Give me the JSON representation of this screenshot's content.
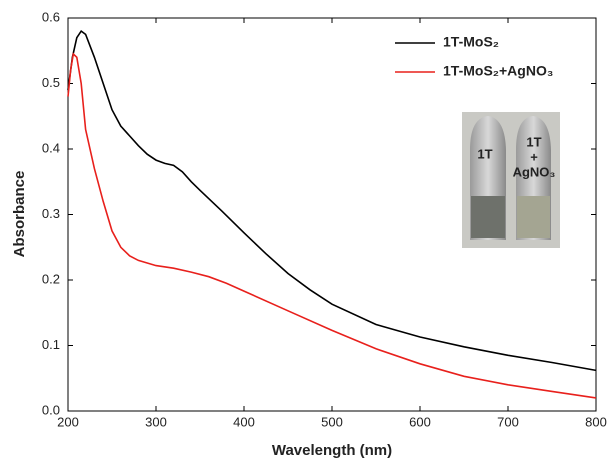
{
  "chart_data": {
    "type": "line",
    "x_label": "Wavelength (nm)",
    "y_label": "Absorbance",
    "xlim": [
      200,
      800
    ],
    "ylim": [
      0,
      0.6
    ],
    "xticks": [
      200,
      300,
      400,
      500,
      600,
      700,
      800
    ],
    "yticks": [
      {
        "value": 0,
        "label": "0.0"
      },
      0.1,
      0.2,
      0.3,
      0.4,
      0.5,
      0.6
    ],
    "legend": "upper right",
    "annotations": [
      "1T",
      "1T",
      "+",
      "AgNO₃"
    ],
    "series": [
      {
        "name": "1T-MoS₂",
        "color": "#000000",
        "x": [
          200,
          205,
          210,
          215,
          220,
          230,
          240,
          250,
          260,
          270,
          280,
          290,
          300,
          310,
          320,
          330,
          340,
          350,
          375,
          400,
          425,
          450,
          475,
          500,
          550,
          600,
          650,
          700,
          750,
          800
        ],
        "values": [
          0.49,
          0.54,
          0.57,
          0.58,
          0.575,
          0.54,
          0.5,
          0.46,
          0.435,
          0.42,
          0.405,
          0.392,
          0.383,
          0.378,
          0.375,
          0.365,
          0.35,
          0.337,
          0.305,
          0.272,
          0.24,
          0.21,
          0.185,
          0.163,
          0.132,
          0.113,
          0.098,
          0.085,
          0.074,
          0.062
        ]
      },
      {
        "name": "1T-MoS₂+AgNO₃",
        "color": "#e8201c",
        "x": [
          200,
          203,
          206,
          210,
          215,
          220,
          230,
          240,
          250,
          260,
          270,
          280,
          300,
          320,
          340,
          360,
          380,
          400,
          450,
          500,
          550,
          600,
          650,
          700,
          750,
          800
        ],
        "values": [
          0.48,
          0.52,
          0.545,
          0.54,
          0.5,
          0.43,
          0.37,
          0.32,
          0.275,
          0.25,
          0.237,
          0.23,
          0.222,
          0.218,
          0.212,
          0.205,
          0.195,
          0.183,
          0.153,
          0.123,
          0.095,
          0.072,
          0.053,
          0.04,
          0.03,
          0.02
        ]
      }
    ]
  }
}
